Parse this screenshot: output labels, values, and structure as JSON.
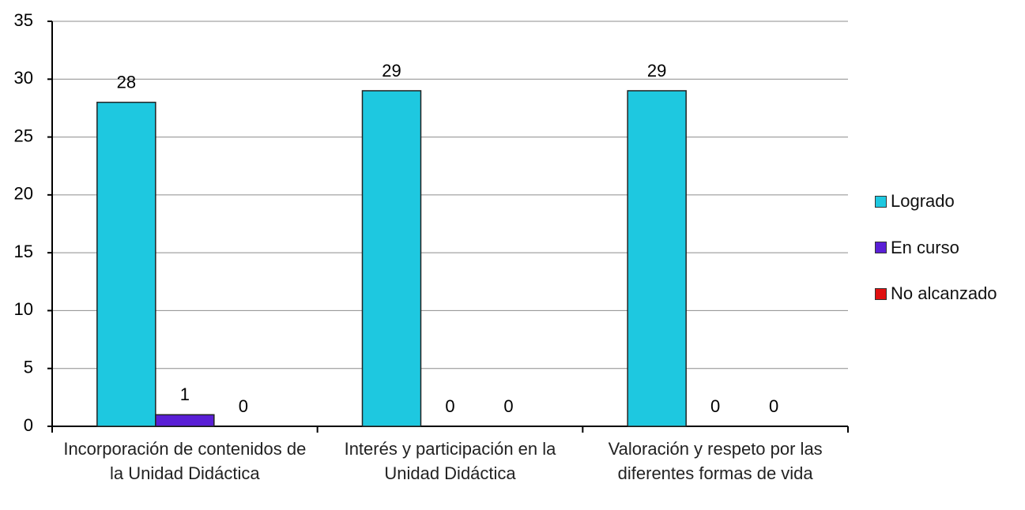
{
  "chart_data": {
    "type": "bar",
    "categories": [
      "Incorporación de contenidos de la Unidad Didáctica",
      "Interés y participación en la Unidad Didáctica",
      "Valoración y respeto por las diferentes formas de vida"
    ],
    "series": [
      {
        "name": "Logrado",
        "color": "#1ec8e0",
        "values": [
          28,
          29,
          29
        ]
      },
      {
        "name": "En curso",
        "color": "#5a1fd6",
        "values": [
          1,
          0,
          0
        ]
      },
      {
        "name": "No alcanzado",
        "color": "#e01010",
        "values": [
          0,
          0,
          0
        ]
      }
    ],
    "ylim": [
      0,
      35
    ],
    "yticks": [
      0,
      5,
      10,
      15,
      20,
      25,
      30,
      35
    ],
    "grid": true,
    "legend": "right"
  }
}
